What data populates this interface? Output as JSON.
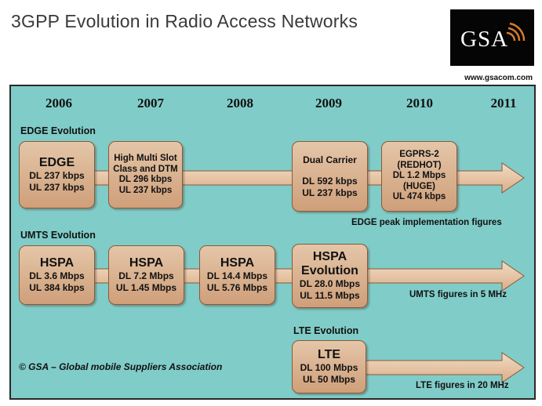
{
  "title": "3GPP Evolution in Radio Access Networks",
  "logo": {
    "text": "GSA",
    "icon": "gsa-logo-icon"
  },
  "website": "www.gsacom.com",
  "years": [
    "2006",
    "2007",
    "2008",
    "2009",
    "2010",
    "2011"
  ],
  "edge": {
    "label": "EDGE Evolution",
    "boxes": [
      {
        "title": "EDGE",
        "lines": [
          "DL 237 kbps",
          "UL 237 kbps"
        ]
      },
      {
        "lines": [
          "High Multi Slot",
          "Class and DTM",
          "DL 296 kbps",
          "UL 237 kbps"
        ]
      },
      {
        "lines": [
          "Dual Carrier",
          "DL 592 kbps",
          "UL 237 kbps"
        ]
      },
      {
        "lines": [
          "EGPRS-2",
          "(REDHOT)",
          "DL 1.2 Mbps",
          "(HUGE)",
          "UL 474 kbps"
        ]
      }
    ],
    "note": "EDGE peak implementation figures"
  },
  "umts": {
    "label": "UMTS Evolution",
    "boxes": [
      {
        "title": "HSPA",
        "lines": [
          "DL 3.6 Mbps",
          "UL 384 kbps"
        ]
      },
      {
        "title": "HSPA",
        "lines": [
          "DL 7.2 Mbps",
          "UL 1.45 Mbps"
        ]
      },
      {
        "title": "HSPA",
        "lines": [
          "DL 14.4 Mbps",
          "UL 5.76 Mbps"
        ]
      },
      {
        "title1": "HSPA",
        "title2": "Evolution",
        "lines": [
          "DL 28.0 Mbps",
          "UL 11.5 Mbps"
        ]
      }
    ],
    "note": "UMTS figures in 5 MHz"
  },
  "lte": {
    "label": "LTE Evolution",
    "box": {
      "title": "LTE",
      "lines": [
        "DL 100 Mbps",
        "UL 50 Mbps"
      ]
    },
    "note": "LTE figures in 20 MHz"
  },
  "copyright": "© GSA – Global mobile Suppliers Association",
  "colors": {
    "panel": "#80ccc8",
    "box": "#d8b08c",
    "arrow": "#e9c8a8"
  }
}
